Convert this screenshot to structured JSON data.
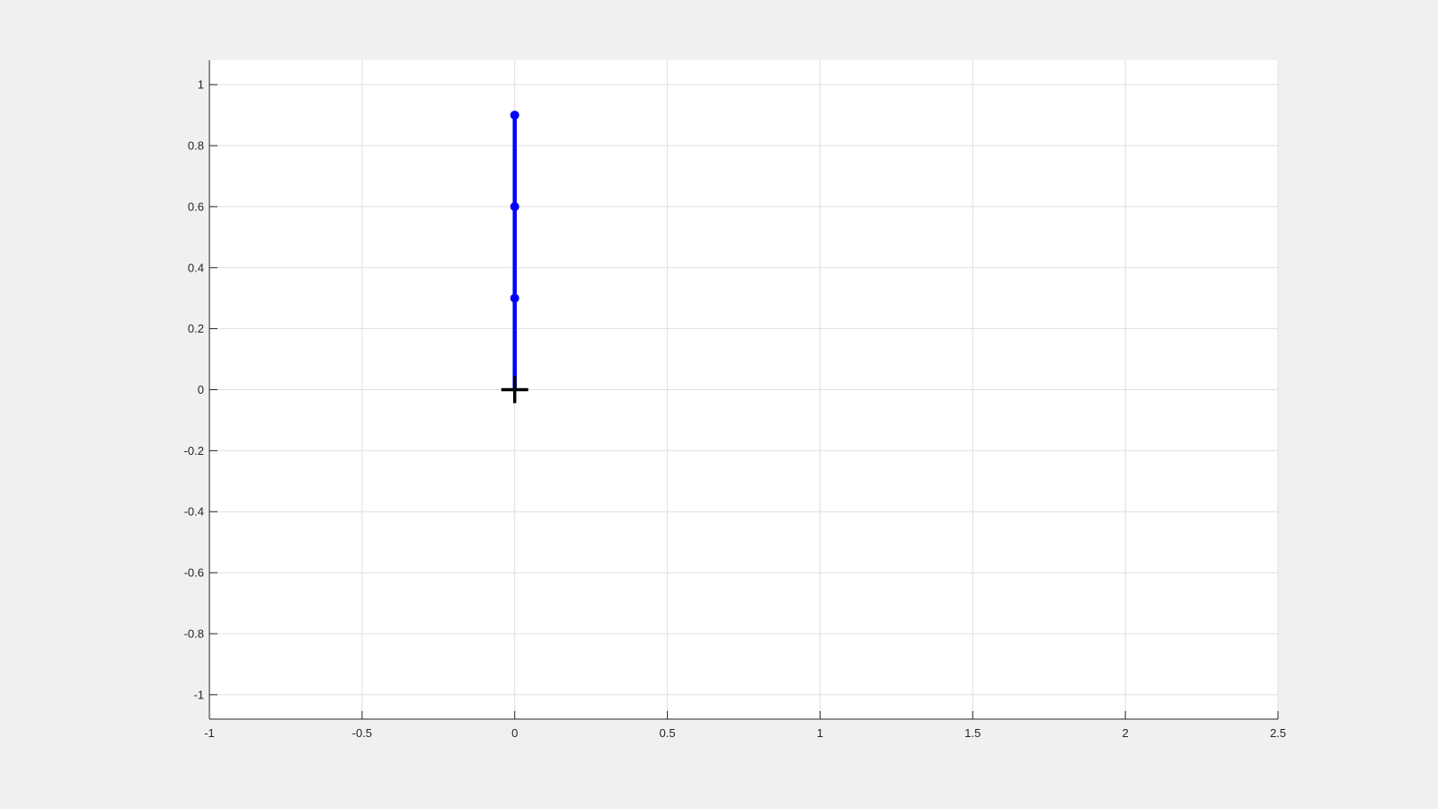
{
  "chart_data": {
    "type": "line",
    "title": "",
    "xlabel": "",
    "ylabel": "",
    "xlim": [
      -1,
      2.5
    ],
    "ylim": [
      -1.08,
      1.08
    ],
    "grid": true,
    "x_ticks": [
      -1,
      -0.5,
      0,
      0.5,
      1,
      1.5,
      2,
      2.5
    ],
    "x_tick_labels": [
      "-1",
      "-0.5",
      "0",
      "0.5",
      "1",
      "1.5",
      "2",
      "2.5"
    ],
    "y_ticks": [
      -1,
      -0.8,
      -0.6,
      -0.4,
      -0.2,
      0,
      0.2,
      0.4,
      0.6,
      0.8,
      1
    ],
    "y_tick_labels": [
      "-1",
      "-0.8",
      "-0.6",
      "-0.4",
      "-0.2",
      "0",
      "0.2",
      "0.4",
      "0.6",
      "0.8",
      "1"
    ],
    "series": [
      {
        "color": "#0000ff",
        "marker": "circle",
        "x": [
          0,
          0,
          0,
          0
        ],
        "y": [
          0,
          0.3,
          0.6,
          0.9
        ],
        "marker_indices": [
          1,
          2,
          3
        ]
      }
    ],
    "marker_point": {
      "shape": "plus",
      "color": "#000000",
      "x": 0,
      "y": 0
    }
  }
}
